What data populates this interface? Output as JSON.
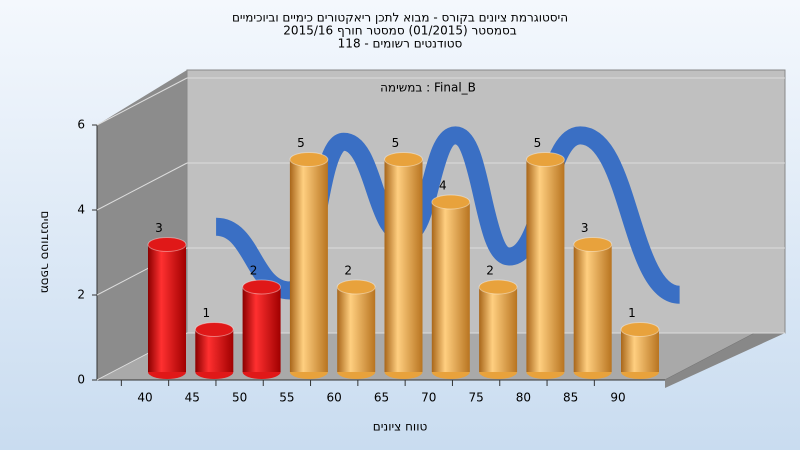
{
  "chart_data": {
    "type": "bar",
    "title": "היסטוגרמת ציונים בקורס - מבוא לתכן ריאקטורים כימיים וביוכימיים",
    "subtitle": "בסמסטר  (01/2015)  סמסטר חורף  2015/16",
    "subtitle2": "סטודנטים רשומים - 118",
    "annotation": "במשימה : Final_B",
    "y_label": "מספר סטודנטים",
    "x_label": "טווח ציונים",
    "categories": [
      "40",
      "45",
      "50",
      "55",
      "60",
      "65",
      "70",
      "75",
      "80",
      "85",
      "90"
    ],
    "values": [
      3,
      1,
      2,
      5,
      2,
      5,
      4,
      2,
      5,
      3,
      1
    ],
    "colors": [
      "#e01818",
      "#e01818",
      "#e01818",
      "#e8a23c",
      "#e8a23c",
      "#e8a23c",
      "#e8a23c",
      "#e8a23c",
      "#e8a23c",
      "#e8a23c",
      "#e8a23c"
    ],
    "trend": {
      "color": "#3a6fc4",
      "x": [
        38,
        45.8,
        51.5,
        58,
        63.3,
        69,
        76.5,
        87
      ],
      "values": [
        2.5,
        1.0,
        4.5,
        2.3,
        4.65,
        1.8,
        4.65,
        0.9
      ]
    },
    "ylim": [
      0,
      6
    ],
    "yticks": [
      0,
      2,
      4,
      6
    ],
    "grid": true
  }
}
